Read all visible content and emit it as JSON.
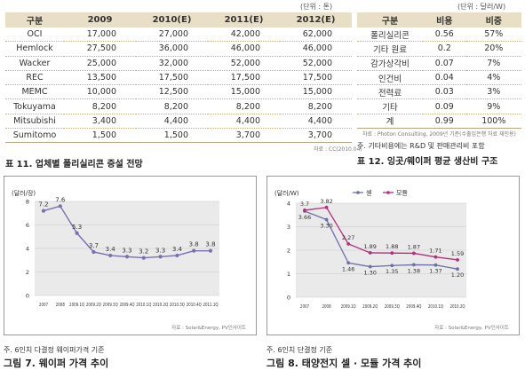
{
  "table11": {
    "unit": "(단위 : 톤)",
    "headers": [
      "구분",
      "2009",
      "2010(E)",
      "2011(E)",
      "2012(E)"
    ],
    "rows": [
      [
        "OCI",
        "17,000",
        "27,000",
        "42,000",
        "62,000"
      ],
      [
        "Hemlock",
        "27,500",
        "36,000",
        "46,000",
        "46,000"
      ],
      [
        "Wacker",
        "25,000",
        "32,000",
        "52,000",
        "52,000"
      ],
      [
        "REC",
        "13,500",
        "17,500",
        "17,500",
        "17,500"
      ],
      [
        "MEMC",
        "10,000",
        "12,500",
        "15,000",
        "15,000"
      ],
      [
        "Tokuyama",
        "8,200",
        "8,200",
        "8,200",
        "8,200"
      ],
      [
        "Mitsubishi",
        "3,400",
        "4,400",
        "4,400",
        "4,400"
      ],
      [
        "Sumitomo",
        "1,500",
        "1,500",
        "3,700",
        "3,700"
      ]
    ],
    "source": "자료 : CC(2010.04)",
    "caption": "표 11. 업체별 폴리실리콘 증설 전망"
  },
  "table12": {
    "unit": "(단위 : 달러/W)",
    "headers": [
      "구분",
      "비용",
      "비중"
    ],
    "rows": [
      [
        "폴리실리콘",
        "0.56",
        "57%"
      ],
      [
        "기타 원료",
        "0.2",
        "20%"
      ],
      [
        "감가상각비",
        "0.07",
        "7%"
      ],
      [
        "인건비",
        "0.04",
        "4%"
      ],
      [
        "전력료",
        "0.03",
        "3%"
      ],
      [
        "기타",
        "0.09",
        "9%"
      ],
      [
        "계",
        "0.99",
        "100%"
      ]
    ],
    "source": "자료 : Photon Consulting, 2009년 기준(수출입은행 자료 재인용)",
    "note": "주. 기타비용에는 R&D 및 판매관리비 포함",
    "caption": "표 12. 잉곳/웨이퍼 평균 생산비 구조"
  },
  "chart_data": [
    {
      "type": "line",
      "ylabel": "(달러/장)",
      "ylim": [
        0,
        8
      ],
      "yticks": [
        "0",
        "2",
        "4",
        "6",
        "8"
      ],
      "categories": [
        "2007",
        "2008",
        "2009.1Q",
        "2009.2Q",
        "2009.3Q",
        "2009.4Q",
        "2010.1Q",
        "2010.2Q",
        "2010.3Q",
        "2010.4Q",
        "2011.1Q"
      ],
      "series": [
        {
          "values": [
            7.2,
            7.6,
            5.3,
            3.7,
            3.4,
            3.3,
            3.2,
            3.3,
            3.4,
            3.8,
            3.8
          ]
        }
      ],
      "data_labels": [
        "7.2",
        "7.6",
        "5.3",
        "3.7",
        "3.4",
        "3.3",
        "3.2",
        "3.3",
        "3.4",
        "3.8",
        "3.8"
      ],
      "source": "자료 : Solar&Energy, PV인사이트",
      "note": "주. 6인치 다결정 웨이퍼가격 기준",
      "caption": "그림 7. 웨이퍼 가격 추이",
      "colors": {
        "line": "#7a6fb0",
        "marker": "#7a6fb0"
      }
    },
    {
      "type": "line",
      "ylabel": "(달러/W)",
      "ylim": [
        0,
        4
      ],
      "yticks": [
        "0",
        "1",
        "2",
        "3",
        "4"
      ],
      "categories": [
        "2007",
        "2008",
        "2009.1Q",
        "2009.2Q",
        "2009.3Q",
        "2009.4Q",
        "2010.1Q",
        "2010.2Q"
      ],
      "series": [
        {
          "name": "셀",
          "values": [
            3.66,
            3.3,
            1.46,
            1.3,
            1.35,
            1.38,
            1.37,
            1.2
          ],
          "labels": [
            "3.66",
            "3.30",
            "1.46",
            "1.30",
            "1.35",
            "1.38",
            "1.37",
            "1.20"
          ]
        },
        {
          "name": "모듈",
          "values": [
            3.7,
            3.82,
            2.27,
            1.89,
            1.88,
            1.87,
            1.71,
            1.59
          ],
          "labels": [
            "3.7",
            "3.82",
            "2.27",
            "1.89",
            "1.88",
            "1.87",
            "1.71",
            "1.59"
          ]
        }
      ],
      "source": "자료 : Solar&Energy, PV인사이트",
      "note": "주. 6인치 단결정 기준",
      "caption": "그림 8. 태양전지 셀 · 모듈 가격 추이",
      "colors": {
        "cell": "#6e6fa6",
        "module": "#b0307a"
      }
    }
  ]
}
